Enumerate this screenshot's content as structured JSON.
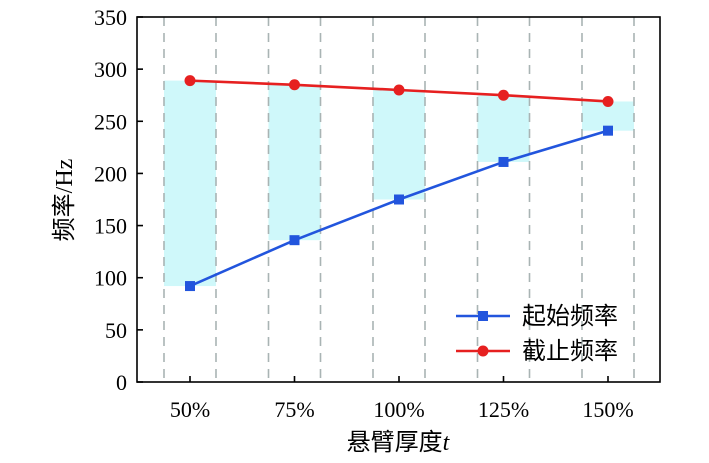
{
  "chart_data": {
    "type": "line",
    "title": "",
    "xlabel_main": "悬臂厚度",
    "xlabel_var": "t",
    "ylabel": "频率/Hz",
    "categories": [
      "50%",
      "75%",
      "100%",
      "125%",
      "150%"
    ],
    "yticks": [
      "0",
      "50",
      "100",
      "150",
      "200",
      "250",
      "300",
      "350"
    ],
    "ylim": [
      0,
      350
    ],
    "grid": "vertical dashed",
    "legend_position": "bottom-right",
    "series": [
      {
        "name": "起始频率",
        "values": [
          92,
          136,
          175,
          211,
          241
        ],
        "color": "#2255dd",
        "marker": "square"
      },
      {
        "name": "截止频率",
        "values": [
          289,
          285,
          280,
          275,
          269
        ],
        "color": "#e62020",
        "marker": "circle"
      }
    ],
    "bandgap_fill_color": "#cff8fa"
  }
}
